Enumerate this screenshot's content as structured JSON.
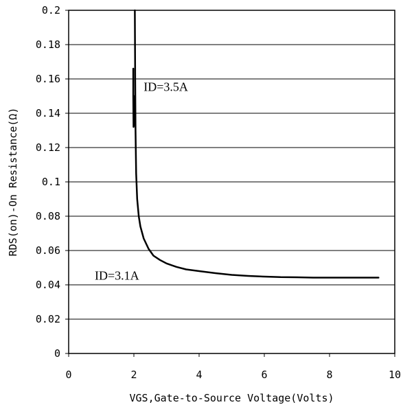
{
  "chart_data": {
    "type": "line",
    "xlabel": "VGS,Gate-to-Source Voltage(Volts)",
    "ylabel": "RDS(on)-On Resistance(Ω)",
    "xlim": [
      0,
      10
    ],
    "ylim": [
      0,
      0.2
    ],
    "x_ticks": [
      0,
      2,
      4,
      6,
      8,
      10
    ],
    "x_tick_labels": [
      "0",
      "2",
      "4",
      "6",
      "8",
      "10"
    ],
    "y_ticks": [
      0,
      0.02,
      0.04,
      0.06,
      0.08,
      0.1,
      0.12,
      0.14,
      0.16,
      0.18,
      0.2
    ],
    "y_tick_labels": [
      "0",
      "0.02",
      "0.04",
      "0.06",
      "0.08",
      "0.1",
      "0.12",
      "0.14",
      "0.16",
      "0.18",
      "0.2"
    ],
    "grid": "horizontal",
    "annotations": [
      {
        "text": "ID=3.5A",
        "x": 2.3,
        "y": 0.153
      },
      {
        "text": "ID=3.1A",
        "x": 0.8,
        "y": 0.043
      }
    ],
    "series": [
      {
        "color": "#000000",
        "x": [
          2.03,
          2.04,
          2.05,
          2.07,
          2.1,
          2.15,
          2.2,
          2.3,
          2.45,
          2.6,
          2.8,
          3.0,
          3.3,
          3.6,
          4.0,
          4.5,
          5.0,
          5.5,
          6.0,
          6.5,
          7.0,
          7.5,
          8.0,
          8.5,
          9.0,
          9.5
        ],
        "y": [
          0.2,
          0.16,
          0.13,
          0.105,
          0.09,
          0.08,
          0.074,
          0.067,
          0.061,
          0.057,
          0.0545,
          0.0525,
          0.0505,
          0.049,
          0.048,
          0.0468,
          0.0458,
          0.0452,
          0.0448,
          0.0445,
          0.0444,
          0.0442,
          0.0442,
          0.0442,
          0.0442,
          0.0442
        ]
      },
      {
        "color": "#000000",
        "x": [
          1.98,
          1.98,
          1.99,
          2.0,
          2.01
        ],
        "y": [
          0.166,
          0.15,
          0.132,
          0.133,
          0.15
        ]
      }
    ]
  }
}
